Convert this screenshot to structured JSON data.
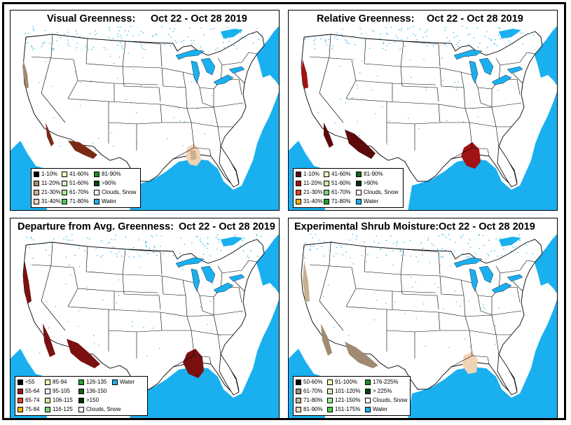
{
  "panels": [
    {
      "id": "visual",
      "title": "Visual Greenness:",
      "date": "Oct 22 - Oct 28 2019",
      "legend": [
        {
          "label": "1-10%",
          "color": "#000000"
        },
        {
          "label": "11-20%",
          "color": "#a08a72"
        },
        {
          "label": "21-30%",
          "color": "#c8b090"
        },
        {
          "label": "31-40%",
          "color": "#f0d2b4"
        },
        {
          "label": "41-60%",
          "color": "#fff8c0"
        },
        {
          "label": "51-60%",
          "color": "#d8f0c0"
        },
        {
          "label": "61-70%",
          "color": "#a0e890"
        },
        {
          "label": "71-80%",
          "color": "#50c850"
        },
        {
          "label": "81-90%",
          "color": "#208c20"
        },
        {
          "label": ">90%",
          "color": "#004a00"
        },
        {
          "label": "Clouds, Snow",
          "color": "#ffffff"
        },
        {
          "label": "Water",
          "color": "#1ab0f0"
        }
      ]
    },
    {
      "id": "relative",
      "title": "Relative Greenness:",
      "date": "Oct 22 - Oct 28 2019",
      "legend": [
        {
          "label": "1-10%",
          "color": "#5a0a0a"
        },
        {
          "label": "11-20%",
          "color": "#a01414"
        },
        {
          "label": "21-30%",
          "color": "#e0461e"
        },
        {
          "label": "31-40%",
          "color": "#f0b400"
        },
        {
          "label": "41-60%",
          "color": "#fff8c0"
        },
        {
          "label": "51-60%",
          "color": "#c8f0a0"
        },
        {
          "label": "61-70%",
          "color": "#78d278"
        },
        {
          "label": "71-80%",
          "color": "#28a028"
        },
        {
          "label": "81-90%",
          "color": "#146414"
        },
        {
          "label": ">90%",
          "color": "#003200"
        },
        {
          "label": "Clouds, Snow",
          "color": "#ffffff"
        },
        {
          "label": "Water",
          "color": "#1ab0f0"
        }
      ]
    },
    {
      "id": "departure",
      "title": "Departure from Avg. Greenness:",
      "date": "Oct 22 - Oct 28 2019",
      "legend": [
        {
          "label": "<55",
          "color": "#000000"
        },
        {
          "label": "55-64",
          "color": "#a01414"
        },
        {
          "label": "65-74",
          "color": "#e0461e"
        },
        {
          "label": "75-84",
          "color": "#f0b400"
        },
        {
          "label": "85-94",
          "color": "#fff8a0"
        },
        {
          "label": "95-105",
          "color": "#ffffff"
        },
        {
          "label": "106-115",
          "color": "#c8f0a0"
        },
        {
          "label": "116-125",
          "color": "#78d278"
        },
        {
          "label": "126-135",
          "color": "#28a028"
        },
        {
          "label": "136-150",
          "color": "#146414"
        },
        {
          "label": ">150",
          "color": "#003200"
        },
        {
          "label": "Clouds, Snow",
          "color": "#ffffff"
        },
        {
          "label": "Water",
          "color": "#1ab0f0"
        }
      ]
    },
    {
      "id": "shrub",
      "title": "Experimental Shrub Moisture:",
      "date": "Oct 22 - Oct 28 2019",
      "legend": [
        {
          "label": "50-60%",
          "color": "#000000"
        },
        {
          "label": "61-70%",
          "color": "#a08a72"
        },
        {
          "label": "71-80%",
          "color": "#c8b090"
        },
        {
          "label": "81-90%",
          "color": "#f0d2b4"
        },
        {
          "label": "91-100%",
          "color": "#fff8c0"
        },
        {
          "label": "101-120%",
          "color": "#d8f0c0"
        },
        {
          "label": "121-150%",
          "color": "#a0e890"
        },
        {
          "label": "151-175%",
          "color": "#50c850"
        },
        {
          "label": "176-225%",
          "color": "#208c20"
        },
        {
          "label": "> 225%",
          "color": "#004a00"
        },
        {
          "label": "Clouds, Snow",
          "color": "#ffffff"
        },
        {
          "label": "Water",
          "color": "#1ab0f0"
        }
      ]
    }
  ]
}
